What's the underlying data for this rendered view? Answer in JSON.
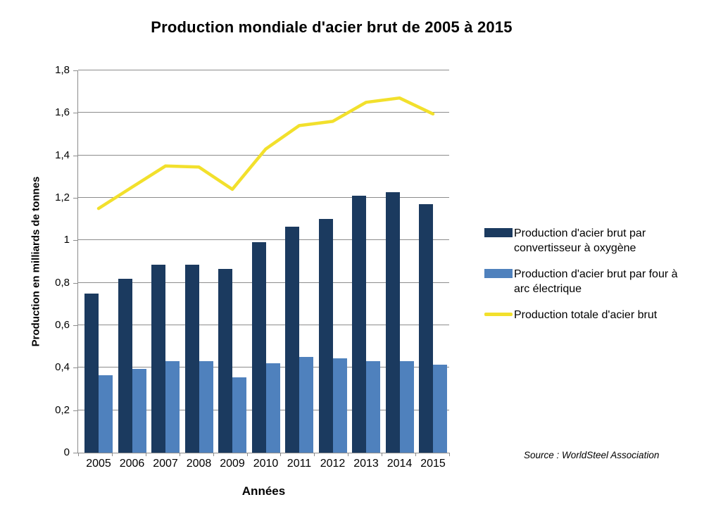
{
  "title": "Production mondiale d'acier brut de 2005 à 2015",
  "source_note": "Source : WorldSteel Association",
  "chart_data": {
    "type": "bar",
    "subtype": "grouped-bars-with-line-overlay",
    "title": "Production mondiale d'acier brut de 2005 à 2015",
    "xlabel": "Années",
    "ylabel": "Production en milliards de tonnes",
    "categories": [
      "2005",
      "2006",
      "2007",
      "2008",
      "2009",
      "2010",
      "2011",
      "2012",
      "2013",
      "2014",
      "2015"
    ],
    "series": [
      {
        "name": "Production d'acier brut par convertisseur à oxygène",
        "type": "bar",
        "color": "#1B3A5F",
        "values": [
          0.75,
          0.82,
          0.885,
          0.885,
          0.865,
          0.99,
          1.065,
          1.1,
          1.21,
          1.225,
          1.17
        ]
      },
      {
        "name": "Production d'acier brut par four à arc électrique",
        "type": "bar",
        "color": "#4F81BD",
        "values": [
          0.365,
          0.395,
          0.43,
          0.43,
          0.355,
          0.42,
          0.45,
          0.445,
          0.43,
          0.43,
          0.415
        ]
      },
      {
        "name": "Production totale d'acier brut",
        "type": "line",
        "color": "#F2E02C",
        "values": [
          1.15,
          1.25,
          1.35,
          1.345,
          1.24,
          1.43,
          1.54,
          1.56,
          1.65,
          1.67,
          1.595
        ]
      }
    ],
    "ylim": [
      0,
      1.8
    ],
    "ytick_step": 0.2,
    "ytick_labels": [
      "0",
      "0,2",
      "0,4",
      "0,6",
      "0,8",
      "1",
      "1,2",
      "1,4",
      "1,6",
      "1,8"
    ],
    "grid": true,
    "legend_position": "right",
    "axis_color": "#8C8C8C"
  }
}
